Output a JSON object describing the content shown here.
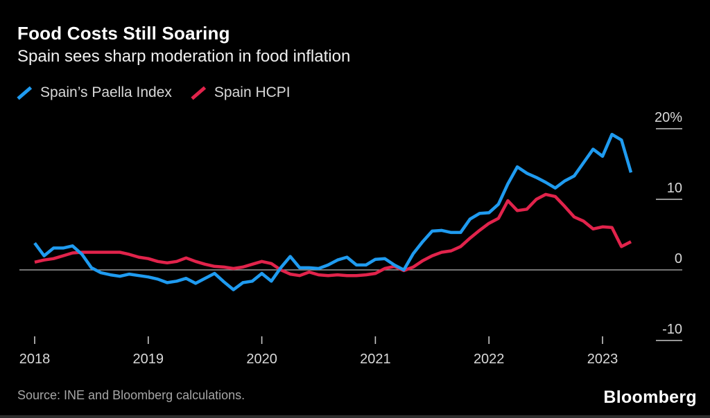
{
  "header": {
    "title": "Food Costs Still Soaring",
    "subtitle": "Spain sees sharp moderation in food inflation"
  },
  "legend": [
    {
      "label": "Spain’s Paella Index",
      "color": "#1f9bf0"
    },
    {
      "label": "Spain HCPI",
      "color": "#e1234b"
    }
  ],
  "chart_data": {
    "type": "line",
    "title": "Food Costs Still Soaring",
    "subtitle": "Spain sees sharp moderation in food inflation",
    "x_frequency": "monthly",
    "x_start": "2018-01",
    "x_end": "2023-04",
    "x_tick_labels": [
      "2018",
      "2019",
      "2020",
      "2021",
      "2022",
      "2023"
    ],
    "y_ticks": [
      {
        "value": 20,
        "label": "20%"
      },
      {
        "value": 10,
        "label": "10"
      },
      {
        "value": 0,
        "label": "0"
      },
      {
        "value": -10,
        "label": "-10"
      }
    ],
    "ylim": [
      -13,
      22
    ],
    "grid": "zero-line-only",
    "legend_position": "top-left",
    "series": [
      {
        "name": "Spain’s Paella Index",
        "color": "#1f9bf0",
        "values": [
          3.8,
          2.0,
          3.1,
          3.1,
          3.4,
          2.2,
          0.3,
          -0.4,
          -0.7,
          -0.9,
          -0.6,
          -0.8,
          -1.0,
          -1.3,
          -1.8,
          -1.6,
          -1.2,
          -1.9,
          -1.2,
          -0.5,
          -1.7,
          -2.8,
          -1.8,
          -1.6,
          -0.5,
          -1.6,
          0.3,
          1.9,
          0.3,
          0.3,
          0.2,
          0.7,
          1.4,
          1.8,
          0.7,
          0.7,
          1.5,
          1.6,
          0.7,
          0.0,
          2.3,
          4.0,
          5.5,
          5.6,
          5.3,
          5.3,
          7.2,
          8.0,
          8.1,
          9.3,
          12.2,
          14.6,
          13.7,
          13.1,
          12.4,
          11.6,
          12.6,
          13.3,
          15.2,
          17.1,
          16.1,
          19.2,
          18.4,
          13.8
        ]
      },
      {
        "name": "Spain HCPI",
        "color": "#e1234b",
        "values": [
          1.1,
          1.4,
          1.6,
          2.0,
          2.4,
          2.5,
          2.5,
          2.5,
          2.5,
          2.5,
          2.2,
          1.8,
          1.6,
          1.2,
          1.0,
          1.2,
          1.7,
          1.2,
          0.8,
          0.5,
          0.4,
          0.2,
          0.4,
          0.8,
          1.2,
          0.9,
          0.0,
          -0.6,
          -0.8,
          -0.3,
          -0.7,
          -0.8,
          -0.7,
          -0.8,
          -0.8,
          -0.7,
          -0.5,
          0.2,
          0.5,
          -0.1,
          0.4,
          1.3,
          2.0,
          2.5,
          2.7,
          3.3,
          4.5,
          5.6,
          6.6,
          7.3,
          9.8,
          8.4,
          8.6,
          10.0,
          10.7,
          10.4,
          9.0,
          7.5,
          6.9,
          5.8,
          6.1,
          6.0,
          3.3,
          4.0
        ]
      }
    ]
  },
  "footer": {
    "source": "Source: INE and Bloomberg calculations.",
    "brand": "Bloomberg"
  }
}
